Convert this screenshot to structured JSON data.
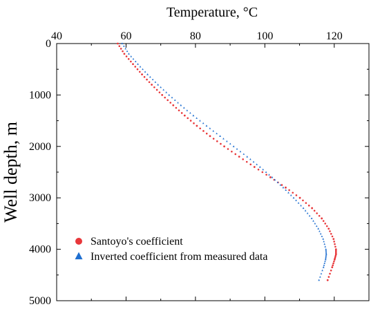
{
  "chart_data": {
    "type": "scatter",
    "xlabel": "Temperature, °C",
    "ylabel": "Well depth, m",
    "xlim": [
      40,
      130
    ],
    "ylim": [
      0,
      5000
    ],
    "y_inverted": true,
    "x_axis_position": "top",
    "x_ticks": [
      40,
      60,
      80,
      100,
      120
    ],
    "y_ticks": [
      0,
      1000,
      2000,
      3000,
      4000,
      5000
    ],
    "legend_position": "bottom-left",
    "grid": false,
    "series": [
      {
        "name": "Santoyo's coefficient",
        "marker": "circle",
        "color": "#e8373a",
        "points": [
          [
            57.6,
            0
          ],
          [
            59.5,
            200
          ],
          [
            62.0,
            400
          ],
          [
            64.6,
            600
          ],
          [
            67.4,
            800
          ],
          [
            70.4,
            1000
          ],
          [
            73.6,
            1200
          ],
          [
            76.9,
            1400
          ],
          [
            80.4,
            1600
          ],
          [
            84.2,
            1800
          ],
          [
            88.3,
            2000
          ],
          [
            92.6,
            2200
          ],
          [
            97.0,
            2400
          ],
          [
            101.6,
            2600
          ],
          [
            106.0,
            2800
          ],
          [
            110.1,
            3000
          ],
          [
            113.6,
            3200
          ],
          [
            116.4,
            3400
          ],
          [
            118.4,
            3600
          ],
          [
            119.8,
            3800
          ],
          [
            120.5,
            4000
          ],
          [
            120.5,
            4100
          ],
          [
            120.1,
            4200
          ],
          [
            119.4,
            4350
          ],
          [
            118.1,
            4600
          ]
        ]
      },
      {
        "name": "Inverted coefficient from measured data",
        "marker": "triangle",
        "color": "#1f6fd0",
        "points": [
          [
            58.9,
            0
          ],
          [
            60.8,
            200
          ],
          [
            63.4,
            400
          ],
          [
            66.2,
            600
          ],
          [
            69.2,
            800
          ],
          [
            72.4,
            1000
          ],
          [
            75.8,
            1200
          ],
          [
            79.4,
            1400
          ],
          [
            83.2,
            1600
          ],
          [
            87.1,
            1800
          ],
          [
            91.0,
            2000
          ],
          [
            94.9,
            2200
          ],
          [
            98.6,
            2400
          ],
          [
            102.1,
            2600
          ],
          [
            105.3,
            2800
          ],
          [
            108.3,
            3000
          ],
          [
            111.1,
            3200
          ],
          [
            113.5,
            3400
          ],
          [
            115.4,
            3600
          ],
          [
            116.8,
            3800
          ],
          [
            117.6,
            4000
          ],
          [
            117.7,
            4100
          ],
          [
            117.5,
            4200
          ],
          [
            116.9,
            4350
          ],
          [
            115.6,
            4600
          ]
        ]
      }
    ]
  }
}
